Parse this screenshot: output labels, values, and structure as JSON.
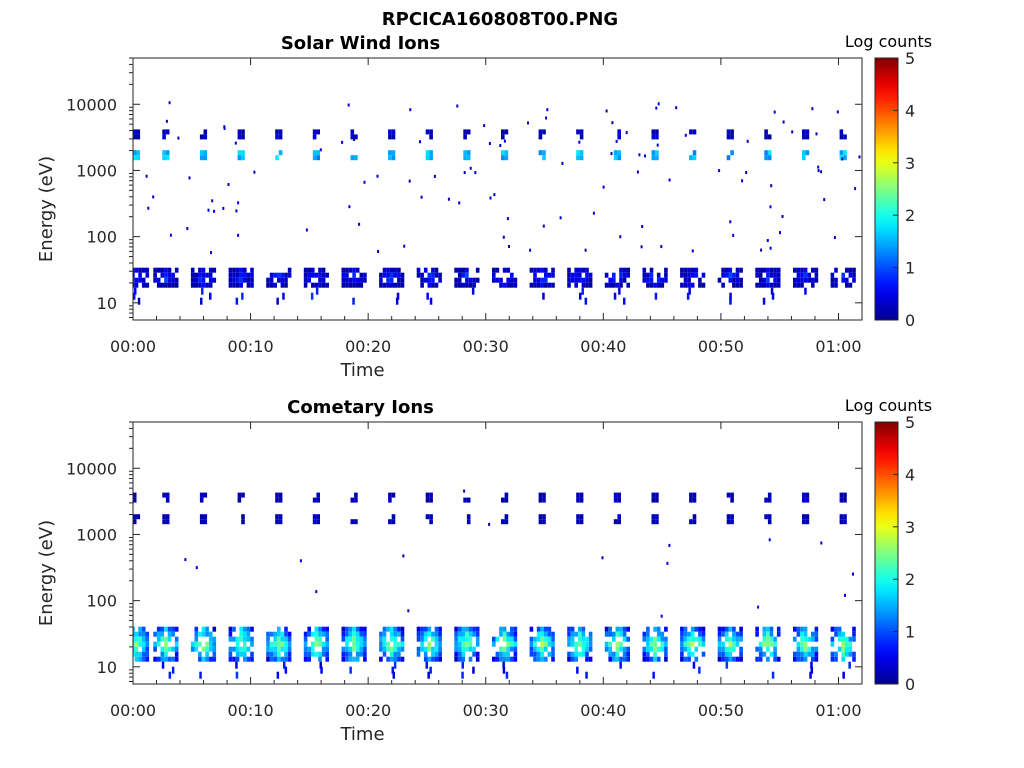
{
  "figure": {
    "title": "RPCICA160808T00.PNG"
  },
  "colormap": {
    "name": "jet",
    "stops": [
      "#00008f",
      "#0000ff",
      "#00ffff",
      "#ffff00",
      "#ff0000",
      "#800000"
    ]
  },
  "chart_data": [
    {
      "type": "heatmap",
      "title": "Solar Wind Ions",
      "xlabel": "Time",
      "ylabel": "Energy (eV)",
      "y_scale": "log",
      "xlim_min": [
        0,
        62
      ],
      "ylim_eV": [
        5.5,
        50000
      ],
      "x_ticks": [
        "00:00",
        "00:10",
        "00:20",
        "00:30",
        "00:40",
        "00:50",
        "01:00"
      ],
      "y_ticks": [
        "10",
        "100",
        "1000",
        "10000"
      ],
      "colorbar": {
        "label": "Log counts",
        "range": [
          0,
          5
        ],
        "ticks": [
          "0",
          "1",
          "2",
          "3",
          "4",
          "5"
        ]
      },
      "scan_times_min": [
        0.3,
        2.8,
        6.0,
        9.2,
        12.4,
        15.6,
        18.8,
        22.0,
        25.2,
        28.4,
        31.6,
        34.8,
        38.0,
        41.2,
        44.4,
        47.6,
        50.8,
        54.0,
        57.2,
        60.4
      ],
      "bands": [
        {
          "energy_eV": 1700,
          "log_counts": 2.2
        },
        {
          "energy_eV": 3500,
          "log_counts": 0.9
        },
        {
          "energy_eV": 24,
          "log_counts": 0.9
        }
      ],
      "noise": "sparse 0-0.5 log-count points between 60 eV and 12000 eV"
    },
    {
      "type": "heatmap",
      "title": "Cometary Ions",
      "xlabel": "Time",
      "ylabel": "Energy (eV)",
      "y_scale": "log",
      "xlim_min": [
        0,
        62
      ],
      "ylim_eV": [
        5.5,
        50000
      ],
      "x_ticks": [
        "00:00",
        "00:10",
        "00:20",
        "00:30",
        "00:40",
        "00:50",
        "01:00"
      ],
      "y_ticks": [
        "10",
        "100",
        "1000",
        "10000"
      ],
      "colorbar": {
        "label": "Log counts",
        "range": [
          0,
          5
        ],
        "ticks": [
          "0",
          "1",
          "2",
          "3",
          "4",
          "5"
        ]
      },
      "scan_times_min": [
        0.3,
        2.8,
        6.0,
        9.2,
        12.4,
        15.6,
        18.8,
        22.0,
        25.2,
        28.4,
        31.6,
        34.8,
        38.0,
        41.2,
        44.4,
        47.6,
        50.8,
        54.0,
        57.2,
        60.4
      ],
      "bands": [
        {
          "energy_eV": 22,
          "log_counts": 2.6
        },
        {
          "energy_eV": 1700,
          "log_counts": 0.5
        },
        {
          "energy_eV": 3600,
          "log_counts": 0.4
        }
      ],
      "noise": "very sparse 0-0.5 log-count points between 60 eV and 6000 eV"
    }
  ]
}
